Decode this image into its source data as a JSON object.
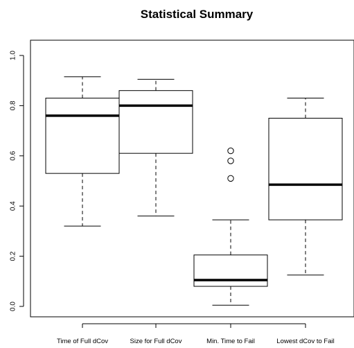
{
  "chart_data": {
    "type": "boxplot",
    "title": "Statistical Summary",
    "xlabel": "",
    "ylabel": "",
    "ylim": [
      0.0,
      1.0
    ],
    "yticks": [
      "0.0",
      "0.2",
      "0.4",
      "0.6",
      "0.8",
      "1.0"
    ],
    "grid": false,
    "categories": [
      "Time of Full dCov",
      "Size for Full dCov",
      "Min. Time to Fail",
      "Lowest dCov to Fail"
    ],
    "boxes": [
      {
        "whisker_low": 0.32,
        "q1": 0.53,
        "median": 0.76,
        "q3": 0.83,
        "whisker_high": 0.915,
        "outliers": []
      },
      {
        "whisker_low": 0.36,
        "q1": 0.61,
        "median": 0.8,
        "q3": 0.86,
        "whisker_high": 0.905,
        "outliers": []
      },
      {
        "whisker_low": 0.005,
        "q1": 0.08,
        "median": 0.105,
        "q3": 0.205,
        "whisker_high": 0.345,
        "outliers": [
          0.51,
          0.58,
          0.62
        ]
      },
      {
        "whisker_low": 0.125,
        "q1": 0.345,
        "median": 0.485,
        "q3": 0.75,
        "whisker_high": 0.83,
        "outliers": []
      }
    ]
  }
}
